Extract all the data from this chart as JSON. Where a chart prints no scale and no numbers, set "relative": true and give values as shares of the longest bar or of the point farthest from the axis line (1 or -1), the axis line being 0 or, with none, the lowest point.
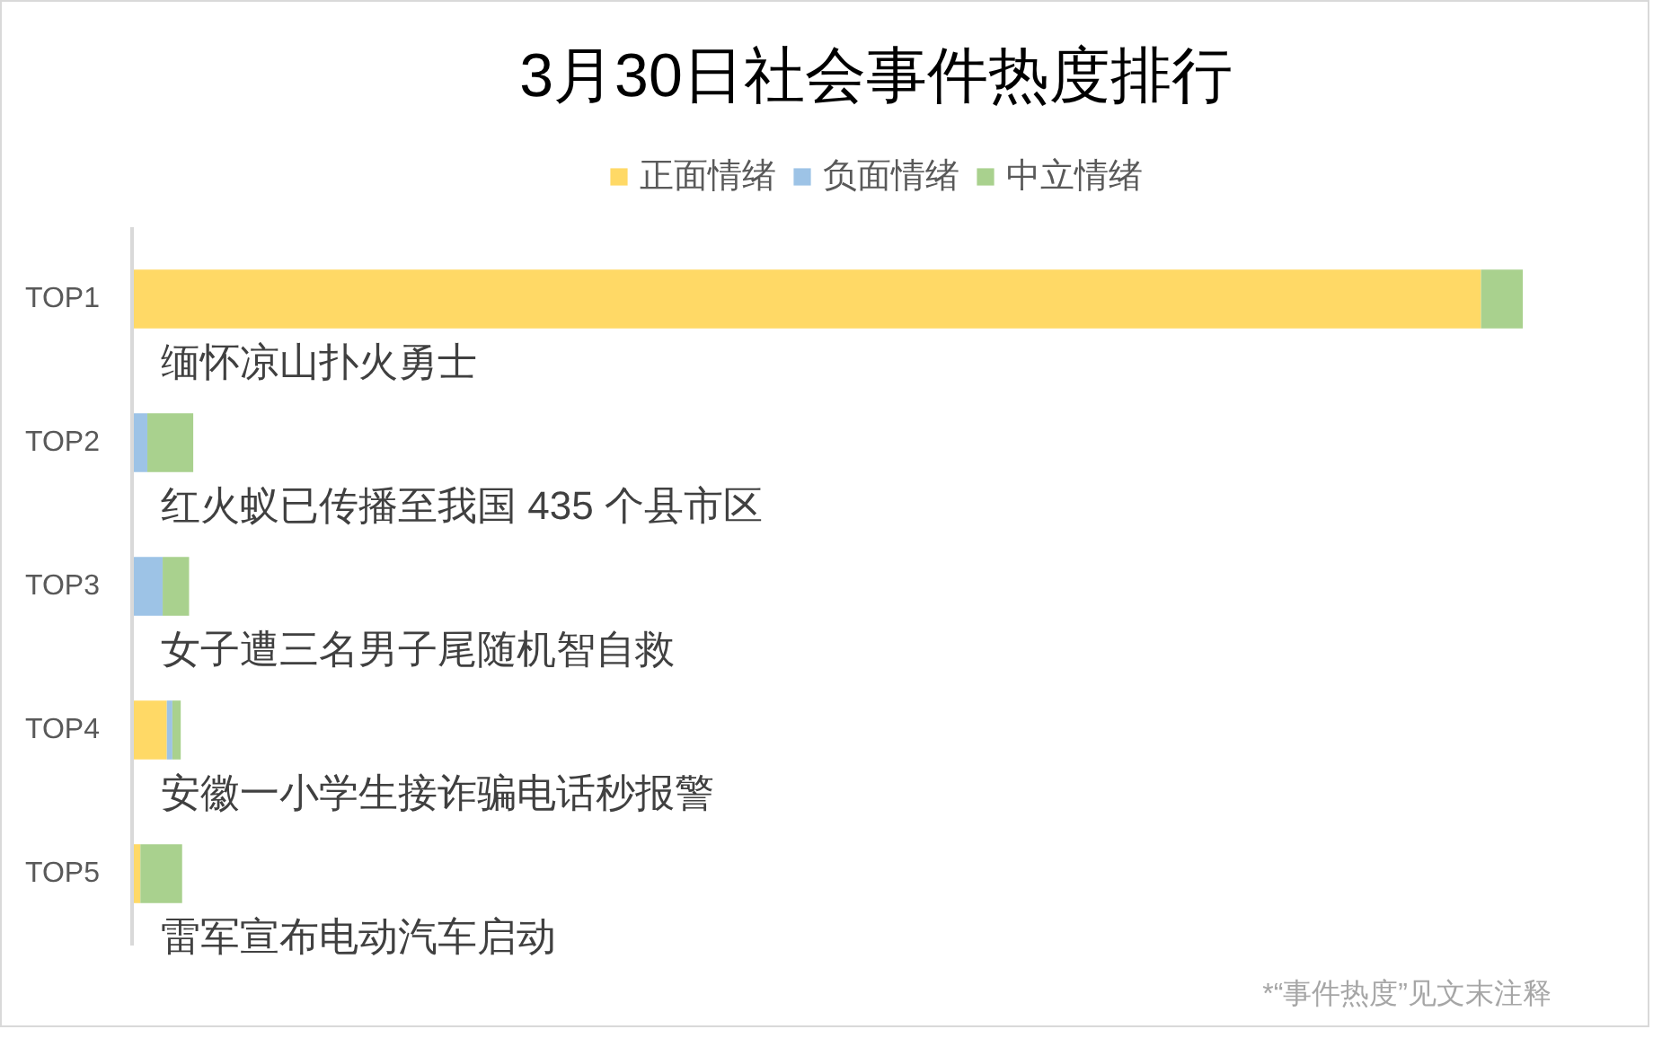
{
  "chart_data": {
    "type": "bar",
    "orientation": "horizontal",
    "stacked": true,
    "relative": true,
    "title": "3月30日社会事件热度排行",
    "categories": [
      "TOP1",
      "TOP2",
      "TOP3",
      "TOP4",
      "TOP5"
    ],
    "series": [
      {
        "name": "正面情绪",
        "color": "#ffd966",
        "values": [
          0.97,
          null,
          null,
          0.025,
          0.006
        ]
      },
      {
        "name": "负面情绪",
        "color": "#9dc3e6",
        "values": [
          null,
          0.011,
          0.022,
          0.004,
          null
        ]
      },
      {
        "name": "中立情绪",
        "color": "#a9d18e",
        "values": [
          0.03,
          0.033,
          0.019,
          0.006,
          0.03
        ]
      }
    ],
    "legend": "top",
    "annotations": [
      "缅怀凉山扑火勇士",
      "红火蚁已传播至我国 435 个县市区",
      "女子遭三名男子尾随机智自救",
      "安徽一小学生接诈骗电话秒报警",
      "雷军宣布电动汽车启动",
      "*“事件热度”见文末注释"
    ]
  }
}
